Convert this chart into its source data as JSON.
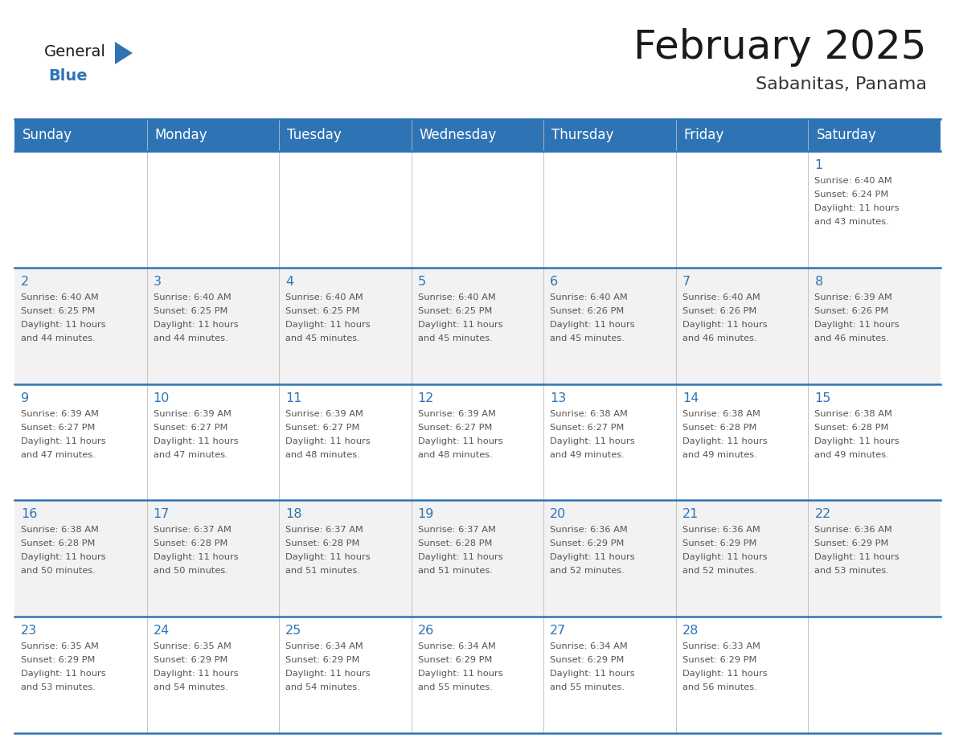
{
  "title": "February 2025",
  "subtitle": "Sabanitas, Panama",
  "header_bg": "#2E74B5",
  "header_text": "#FFFFFF",
  "day_names": [
    "Sunday",
    "Monday",
    "Tuesday",
    "Wednesday",
    "Thursday",
    "Friday",
    "Saturday"
  ],
  "row_bg_odd": "#FFFFFF",
  "row_bg_even": "#F2F2F2",
  "grid_line_color": "#2E74B5",
  "text_color": "#555555",
  "number_color": "#2E74B5",
  "days": [
    {
      "day": 1,
      "col": 6,
      "row": 0,
      "sunrise": "6:40 AM",
      "sunset": "6:24 PM",
      "daylight": "11 hours and 43 minutes"
    },
    {
      "day": 2,
      "col": 0,
      "row": 1,
      "sunrise": "6:40 AM",
      "sunset": "6:25 PM",
      "daylight": "11 hours and 44 minutes"
    },
    {
      "day": 3,
      "col": 1,
      "row": 1,
      "sunrise": "6:40 AM",
      "sunset": "6:25 PM",
      "daylight": "11 hours and 44 minutes"
    },
    {
      "day": 4,
      "col": 2,
      "row": 1,
      "sunrise": "6:40 AM",
      "sunset": "6:25 PM",
      "daylight": "11 hours and 45 minutes"
    },
    {
      "day": 5,
      "col": 3,
      "row": 1,
      "sunrise": "6:40 AM",
      "sunset": "6:25 PM",
      "daylight": "11 hours and 45 minutes"
    },
    {
      "day": 6,
      "col": 4,
      "row": 1,
      "sunrise": "6:40 AM",
      "sunset": "6:26 PM",
      "daylight": "11 hours and 45 minutes"
    },
    {
      "day": 7,
      "col": 5,
      "row": 1,
      "sunrise": "6:40 AM",
      "sunset": "6:26 PM",
      "daylight": "11 hours and 46 minutes"
    },
    {
      "day": 8,
      "col": 6,
      "row": 1,
      "sunrise": "6:39 AM",
      "sunset": "6:26 PM",
      "daylight": "11 hours and 46 minutes"
    },
    {
      "day": 9,
      "col": 0,
      "row": 2,
      "sunrise": "6:39 AM",
      "sunset": "6:27 PM",
      "daylight": "11 hours and 47 minutes"
    },
    {
      "day": 10,
      "col": 1,
      "row": 2,
      "sunrise": "6:39 AM",
      "sunset": "6:27 PM",
      "daylight": "11 hours and 47 minutes"
    },
    {
      "day": 11,
      "col": 2,
      "row": 2,
      "sunrise": "6:39 AM",
      "sunset": "6:27 PM",
      "daylight": "11 hours and 48 minutes"
    },
    {
      "day": 12,
      "col": 3,
      "row": 2,
      "sunrise": "6:39 AM",
      "sunset": "6:27 PM",
      "daylight": "11 hours and 48 minutes"
    },
    {
      "day": 13,
      "col": 4,
      "row": 2,
      "sunrise": "6:38 AM",
      "sunset": "6:27 PM",
      "daylight": "11 hours and 49 minutes"
    },
    {
      "day": 14,
      "col": 5,
      "row": 2,
      "sunrise": "6:38 AM",
      "sunset": "6:28 PM",
      "daylight": "11 hours and 49 minutes"
    },
    {
      "day": 15,
      "col": 6,
      "row": 2,
      "sunrise": "6:38 AM",
      "sunset": "6:28 PM",
      "daylight": "11 hours and 49 minutes"
    },
    {
      "day": 16,
      "col": 0,
      "row": 3,
      "sunrise": "6:38 AM",
      "sunset": "6:28 PM",
      "daylight": "11 hours and 50 minutes"
    },
    {
      "day": 17,
      "col": 1,
      "row": 3,
      "sunrise": "6:37 AM",
      "sunset": "6:28 PM",
      "daylight": "11 hours and 50 minutes"
    },
    {
      "day": 18,
      "col": 2,
      "row": 3,
      "sunrise": "6:37 AM",
      "sunset": "6:28 PM",
      "daylight": "11 hours and 51 minutes"
    },
    {
      "day": 19,
      "col": 3,
      "row": 3,
      "sunrise": "6:37 AM",
      "sunset": "6:28 PM",
      "daylight": "11 hours and 51 minutes"
    },
    {
      "day": 20,
      "col": 4,
      "row": 3,
      "sunrise": "6:36 AM",
      "sunset": "6:29 PM",
      "daylight": "11 hours and 52 minutes"
    },
    {
      "day": 21,
      "col": 5,
      "row": 3,
      "sunrise": "6:36 AM",
      "sunset": "6:29 PM",
      "daylight": "11 hours and 52 minutes"
    },
    {
      "day": 22,
      "col": 6,
      "row": 3,
      "sunrise": "6:36 AM",
      "sunset": "6:29 PM",
      "daylight": "11 hours and 53 minutes"
    },
    {
      "day": 23,
      "col": 0,
      "row": 4,
      "sunrise": "6:35 AM",
      "sunset": "6:29 PM",
      "daylight": "11 hours and 53 minutes"
    },
    {
      "day": 24,
      "col": 1,
      "row": 4,
      "sunrise": "6:35 AM",
      "sunset": "6:29 PM",
      "daylight": "11 hours and 54 minutes"
    },
    {
      "day": 25,
      "col": 2,
      "row": 4,
      "sunrise": "6:34 AM",
      "sunset": "6:29 PM",
      "daylight": "11 hours and 54 minutes"
    },
    {
      "day": 26,
      "col": 3,
      "row": 4,
      "sunrise": "6:34 AM",
      "sunset": "6:29 PM",
      "daylight": "11 hours and 55 minutes"
    },
    {
      "day": 27,
      "col": 4,
      "row": 4,
      "sunrise": "6:34 AM",
      "sunset": "6:29 PM",
      "daylight": "11 hours and 55 minutes"
    },
    {
      "day": 28,
      "col": 5,
      "row": 4,
      "sunrise": "6:33 AM",
      "sunset": "6:29 PM",
      "daylight": "11 hours and 56 minutes"
    }
  ],
  "logo_general_color": "#1a1a1a",
  "logo_blue_color": "#2E74B5",
  "logo_triangle_color": "#2E74B5"
}
